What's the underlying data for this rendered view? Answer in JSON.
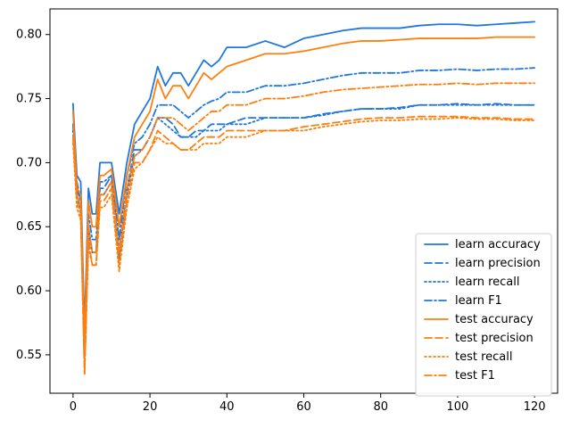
{
  "chart_data": {
    "type": "line",
    "title": "",
    "xlabel": "",
    "ylabel": "",
    "xlim": [
      0,
      120
    ],
    "ylim": [
      0.52,
      0.82
    ],
    "xticks": [
      0,
      20,
      40,
      60,
      80,
      100,
      120
    ],
    "yticks": [
      0.55,
      0.6,
      0.65,
      0.7,
      0.75,
      0.8
    ],
    "grid": false,
    "legend_position": "lower-right",
    "colors": {
      "learn": "#1f77e0",
      "test": "#ff7f0e"
    },
    "x": [
      0,
      1,
      2,
      3,
      4,
      5,
      6,
      7,
      8,
      10,
      12,
      14,
      16,
      18,
      20,
      22,
      24,
      26,
      28,
      30,
      32,
      34,
      36,
      38,
      40,
      45,
      50,
      55,
      60,
      65,
      70,
      75,
      80,
      85,
      90,
      95,
      100,
      105,
      110,
      115,
      120
    ],
    "series": [
      {
        "name": "learn accuracy",
        "color": "#1f77e0",
        "dash": "solid",
        "values": [
          0.746,
          0.69,
          0.685,
          0.57,
          0.68,
          0.66,
          0.66,
          0.7,
          0.7,
          0.7,
          0.66,
          0.7,
          0.73,
          0.74,
          0.75,
          0.775,
          0.76,
          0.77,
          0.77,
          0.76,
          0.77,
          0.78,
          0.775,
          0.78,
          0.79,
          0.79,
          0.795,
          0.79,
          0.797,
          0.8,
          0.803,
          0.805,
          0.805,
          0.805,
          0.807,
          0.808,
          0.808,
          0.807,
          0.808,
          0.809,
          0.81
        ]
      },
      {
        "name": "learn precision",
        "color": "#1f77e0",
        "dash": "8,4",
        "values": [
          0.73,
          0.68,
          0.67,
          0.55,
          0.65,
          0.63,
          0.63,
          0.68,
          0.68,
          0.69,
          0.63,
          0.68,
          0.71,
          0.71,
          0.72,
          0.735,
          0.735,
          0.73,
          0.72,
          0.72,
          0.725,
          0.725,
          0.73,
          0.73,
          0.73,
          0.735,
          0.735,
          0.735,
          0.735,
          0.738,
          0.74,
          0.742,
          0.742,
          0.743,
          0.745,
          0.745,
          0.746,
          0.745,
          0.746,
          0.745,
          0.745
        ]
      },
      {
        "name": "learn recall",
        "color": "#1f77e0",
        "dash": "2,3",
        "values": [
          0.725,
          0.675,
          0.66,
          0.55,
          0.645,
          0.63,
          0.63,
          0.675,
          0.675,
          0.685,
          0.625,
          0.675,
          0.705,
          0.71,
          0.72,
          0.735,
          0.73,
          0.725,
          0.72,
          0.72,
          0.72,
          0.725,
          0.725,
          0.725,
          0.73,
          0.73,
          0.735,
          0.735,
          0.735,
          0.737,
          0.74,
          0.742,
          0.742,
          0.742,
          0.745,
          0.745,
          0.745,
          0.745,
          0.745,
          0.745,
          0.745
        ]
      },
      {
        "name": "learn F1",
        "color": "#1f77e0",
        "dash": "8,3,2,3",
        "values": [
          0.73,
          0.685,
          0.67,
          0.555,
          0.66,
          0.64,
          0.64,
          0.685,
          0.685,
          0.69,
          0.64,
          0.69,
          0.715,
          0.72,
          0.73,
          0.745,
          0.745,
          0.745,
          0.74,
          0.735,
          0.74,
          0.745,
          0.748,
          0.75,
          0.755,
          0.755,
          0.76,
          0.76,
          0.762,
          0.765,
          0.768,
          0.77,
          0.77,
          0.77,
          0.772,
          0.772,
          0.773,
          0.772,
          0.773,
          0.773,
          0.774
        ]
      },
      {
        "name": "test accuracy",
        "color": "#ff7f0e",
        "dash": "solid",
        "values": [
          0.74,
          0.68,
          0.675,
          0.56,
          0.67,
          0.65,
          0.65,
          0.69,
          0.69,
          0.695,
          0.65,
          0.69,
          0.72,
          0.73,
          0.74,
          0.765,
          0.75,
          0.76,
          0.76,
          0.75,
          0.76,
          0.77,
          0.765,
          0.77,
          0.775,
          0.78,
          0.785,
          0.785,
          0.787,
          0.79,
          0.793,
          0.795,
          0.795,
          0.796,
          0.797,
          0.797,
          0.797,
          0.797,
          0.798,
          0.798,
          0.798
        ]
      },
      {
        "name": "test precision",
        "color": "#ff7f0e",
        "dash": "8,4",
        "values": [
          0.72,
          0.67,
          0.66,
          0.535,
          0.64,
          0.62,
          0.62,
          0.67,
          0.67,
          0.68,
          0.62,
          0.67,
          0.7,
          0.7,
          0.71,
          0.725,
          0.72,
          0.715,
          0.71,
          0.71,
          0.715,
          0.72,
          0.72,
          0.72,
          0.725,
          0.725,
          0.725,
          0.725,
          0.728,
          0.73,
          0.732,
          0.734,
          0.735,
          0.735,
          0.736,
          0.736,
          0.736,
          0.735,
          0.735,
          0.734,
          0.734
        ]
      },
      {
        "name": "test recall",
        "color": "#ff7f0e",
        "dash": "2,3",
        "values": [
          0.715,
          0.665,
          0.655,
          0.535,
          0.635,
          0.62,
          0.62,
          0.665,
          0.665,
          0.675,
          0.615,
          0.665,
          0.695,
          0.7,
          0.71,
          0.72,
          0.715,
          0.715,
          0.71,
          0.71,
          0.71,
          0.715,
          0.715,
          0.715,
          0.72,
          0.72,
          0.725,
          0.725,
          0.725,
          0.728,
          0.73,
          0.732,
          0.733,
          0.733,
          0.734,
          0.734,
          0.735,
          0.734,
          0.734,
          0.733,
          0.733
        ]
      },
      {
        "name": "test F1",
        "color": "#ff7f0e",
        "dash": "8,3,2,3",
        "values": [
          0.72,
          0.675,
          0.665,
          0.54,
          0.65,
          0.63,
          0.63,
          0.675,
          0.675,
          0.685,
          0.63,
          0.68,
          0.705,
          0.71,
          0.72,
          0.735,
          0.735,
          0.735,
          0.73,
          0.725,
          0.73,
          0.735,
          0.74,
          0.74,
          0.745,
          0.745,
          0.75,
          0.75,
          0.752,
          0.755,
          0.757,
          0.758,
          0.759,
          0.76,
          0.761,
          0.761,
          0.762,
          0.761,
          0.762,
          0.762,
          0.762
        ]
      }
    ]
  }
}
